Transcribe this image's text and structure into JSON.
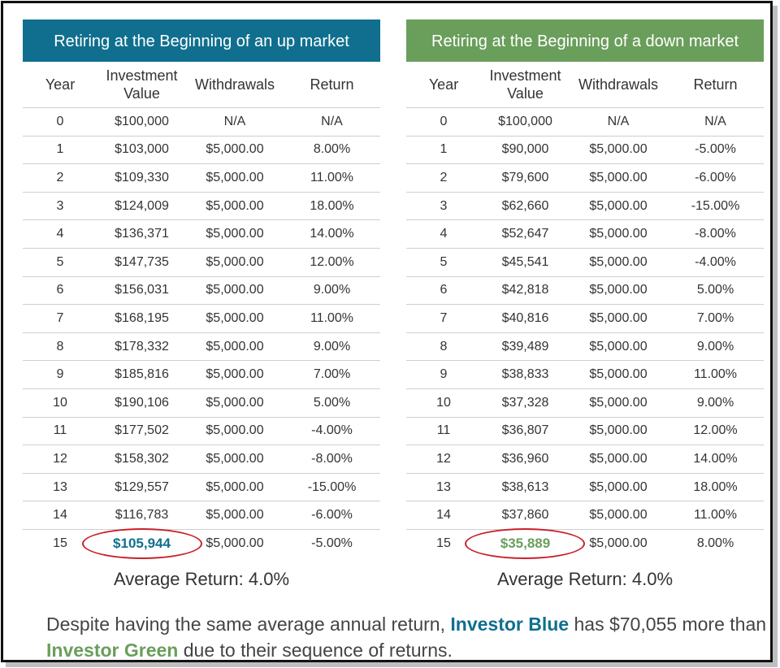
{
  "left": {
    "title": "Retiring at the Beginning of an up market",
    "headers": {
      "year": "Year",
      "value_line1": "Investment",
      "value_line2": "Value",
      "withdrawals": "Withdrawals",
      "return": "Return"
    },
    "rows": [
      {
        "year": "0",
        "value": "$100,000",
        "withdrawal": "N/A",
        "return": "N/A"
      },
      {
        "year": "1",
        "value": "$103,000",
        "withdrawal": "$5,000.00",
        "return": "8.00%"
      },
      {
        "year": "2",
        "value": "$109,330",
        "withdrawal": "$5,000.00",
        "return": "11.00%"
      },
      {
        "year": "3",
        "value": "$124,009",
        "withdrawal": "$5,000.00",
        "return": "18.00%"
      },
      {
        "year": "4",
        "value": "$136,371",
        "withdrawal": "$5,000.00",
        "return": "14.00%"
      },
      {
        "year": "5",
        "value": "$147,735",
        "withdrawal": "$5,000.00",
        "return": "12.00%"
      },
      {
        "year": "6",
        "value": "$156,031",
        "withdrawal": "$5,000.00",
        "return": "9.00%"
      },
      {
        "year": "7",
        "value": "$168,195",
        "withdrawal": "$5,000.00",
        "return": "11.00%"
      },
      {
        "year": "8",
        "value": "$178,332",
        "withdrawal": "$5,000.00",
        "return": "9.00%"
      },
      {
        "year": "9",
        "value": "$185,816",
        "withdrawal": "$5,000.00",
        "return": "7.00%"
      },
      {
        "year": "10",
        "value": "$190,106",
        "withdrawal": "$5,000.00",
        "return": "5.00%"
      },
      {
        "year": "11",
        "value": "$177,502",
        "withdrawal": "$5,000.00",
        "return": "-4.00%"
      },
      {
        "year": "12",
        "value": "$158,302",
        "withdrawal": "$5,000.00",
        "return": "-8.00%"
      },
      {
        "year": "13",
        "value": "$129,557",
        "withdrawal": "$5,000.00",
        "return": "-15.00%"
      },
      {
        "year": "14",
        "value": "$116,783",
        "withdrawal": "$5,000.00",
        "return": "-6.00%"
      },
      {
        "year": "15",
        "value": "$105,944",
        "withdrawal": "$5,000.00",
        "return": "-5.00%",
        "highlight": true
      }
    ],
    "average": "Average Return: 4.0%"
  },
  "right": {
    "title": "Retiring at the Beginning of  a down market",
    "headers": {
      "year": "Year",
      "value_line1": "Investment",
      "value_line2": "Value",
      "withdrawals": "Withdrawals",
      "return": "Return"
    },
    "rows": [
      {
        "year": "0",
        "value": "$100,000",
        "withdrawal": "N/A",
        "return": "N/A"
      },
      {
        "year": "1",
        "value": "$90,000",
        "withdrawal": "$5,000.00",
        "return": "-5.00%"
      },
      {
        "year": "2",
        "value": "$79,600",
        "withdrawal": "$5,000.00",
        "return": "-6.00%"
      },
      {
        "year": "3",
        "value": "$62,660",
        "withdrawal": "$5,000.00",
        "return": "-15.00%"
      },
      {
        "year": "4",
        "value": "$52,647",
        "withdrawal": "$5,000.00",
        "return": "-8.00%"
      },
      {
        "year": "5",
        "value": "$45,541",
        "withdrawal": "$5,000.00",
        "return": "-4.00%"
      },
      {
        "year": "6",
        "value": "$42,818",
        "withdrawal": "$5,000.00",
        "return": "5.00%"
      },
      {
        "year": "7",
        "value": "$40,816",
        "withdrawal": "$5,000.00",
        "return": "7.00%"
      },
      {
        "year": "8",
        "value": "$39,489",
        "withdrawal": "$5,000.00",
        "return": "9.00%"
      },
      {
        "year": "9",
        "value": "$38,833",
        "withdrawal": "$5,000.00",
        "return": "11.00%"
      },
      {
        "year": "10",
        "value": "$37,328",
        "withdrawal": "$5,000.00",
        "return": "9.00%"
      },
      {
        "year": "11",
        "value": "$36,807",
        "withdrawal": "$5,000.00",
        "return": "12.00%"
      },
      {
        "year": "12",
        "value": "$36,960",
        "withdrawal": "$5,000.00",
        "return": "14.00%"
      },
      {
        "year": "13",
        "value": "$38,613",
        "withdrawal": "$5,000.00",
        "return": "18.00%"
      },
      {
        "year": "14",
        "value": "$37,860",
        "withdrawal": "$5,000.00",
        "return": "11.00%"
      },
      {
        "year": "15",
        "value": "$35,889",
        "withdrawal": "$5,000.00",
        "return": "8.00%",
        "highlight": true
      }
    ],
    "average": "Average Return: 4.0%"
  },
  "footer": {
    "part1": "Despite having the same average annual return, ",
    "blue_name": "Investor Blue",
    "part2": " has $70,055 more than ",
    "green_name": "Investor Green",
    "part3": " due to their sequence of returns."
  },
  "colors": {
    "blue": "#106f8e",
    "green": "#6a9e5b",
    "circle": "#c9202a"
  }
}
